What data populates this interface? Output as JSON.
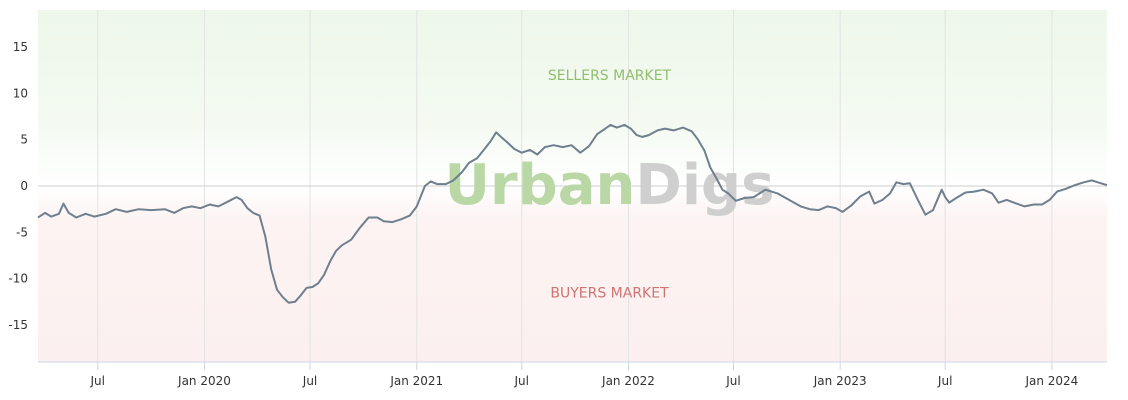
{
  "watermark": {
    "part1": "Urban",
    "part2": "Digs",
    "color1": "#b9d8a6",
    "color2": "#cfcfcf"
  },
  "zones": {
    "sellers": {
      "label": "SELLERS MARKET",
      "color": "#8fbf6e",
      "bg": "#f1f8ee"
    },
    "buyers": {
      "label": "BUYERS MARKET",
      "color": "#d07373",
      "bg": "#fbf0ef"
    }
  },
  "chart_data": {
    "type": "line",
    "ylim": [
      -19,
      19
    ],
    "yticks": [
      15,
      10,
      5,
      0,
      -5,
      -10,
      -15
    ],
    "xlim": [
      "2019-03-20",
      "2024-04-05"
    ],
    "xticks": [
      {
        "date": "2019-07-01",
        "label": "Jul"
      },
      {
        "date": "2020-01-01",
        "label": "Jan 2020"
      },
      {
        "date": "2020-07-01",
        "label": "Jul"
      },
      {
        "date": "2021-01-01",
        "label": "Jan 2021"
      },
      {
        "date": "2021-07-01",
        "label": "Jul"
      },
      {
        "date": "2022-01-01",
        "label": "Jan 2022"
      },
      {
        "date": "2022-07-01",
        "label": "Jul"
      },
      {
        "date": "2023-01-01",
        "label": "Jan 2023"
      },
      {
        "date": "2023-07-01",
        "label": "Jul"
      },
      {
        "date": "2024-01-01",
        "label": "Jan 2024"
      }
    ],
    "line_color": "#6f7f8e",
    "series": [
      {
        "points": [
          [
            "2019-03-20",
            -3.4
          ],
          [
            "2019-04-01",
            -2.9
          ],
          [
            "2019-04-12",
            -3.3
          ],
          [
            "2019-04-25",
            -3.0
          ],
          [
            "2019-05-03",
            -1.9
          ],
          [
            "2019-05-12",
            -2.9
          ],
          [
            "2019-05-25",
            -3.4
          ],
          [
            "2019-06-10",
            -3.0
          ],
          [
            "2019-06-25",
            -3.3
          ],
          [
            "2019-07-15",
            -3.0
          ],
          [
            "2019-08-01",
            -2.5
          ],
          [
            "2019-08-20",
            -2.8
          ],
          [
            "2019-09-10",
            -2.5
          ],
          [
            "2019-10-01",
            -2.6
          ],
          [
            "2019-10-25",
            -2.5
          ],
          [
            "2019-11-10",
            -2.9
          ],
          [
            "2019-11-25",
            -2.4
          ],
          [
            "2019-12-10",
            -2.2
          ],
          [
            "2019-12-25",
            -2.4
          ],
          [
            "2020-01-10",
            -2.0
          ],
          [
            "2020-01-25",
            -2.2
          ],
          [
            "2020-02-10",
            -1.7
          ],
          [
            "2020-02-25",
            -1.2
          ],
          [
            "2020-03-05",
            -1.5
          ],
          [
            "2020-03-15",
            -2.4
          ],
          [
            "2020-03-25",
            -2.9
          ],
          [
            "2020-04-05",
            -3.2
          ],
          [
            "2020-04-15",
            -5.5
          ],
          [
            "2020-04-25",
            -9.0
          ],
          [
            "2020-05-05",
            -11.2
          ],
          [
            "2020-05-15",
            -12.0
          ],
          [
            "2020-05-25",
            -12.6
          ],
          [
            "2020-06-05",
            -12.5
          ],
          [
            "2020-06-15",
            -11.8
          ],
          [
            "2020-06-25",
            -11.0
          ],
          [
            "2020-07-05",
            -10.9
          ],
          [
            "2020-07-15",
            -10.5
          ],
          [
            "2020-07-25",
            -9.6
          ],
          [
            "2020-08-05",
            -8.1
          ],
          [
            "2020-08-15",
            -7.0
          ],
          [
            "2020-08-25",
            -6.4
          ],
          [
            "2020-09-10",
            -5.8
          ],
          [
            "2020-09-25",
            -4.5
          ],
          [
            "2020-10-10",
            -3.4
          ],
          [
            "2020-10-25",
            -3.4
          ],
          [
            "2020-11-05",
            -3.8
          ],
          [
            "2020-11-20",
            -3.9
          ],
          [
            "2020-12-05",
            -3.6
          ],
          [
            "2020-12-20",
            -3.2
          ],
          [
            "2021-01-01",
            -2.2
          ],
          [
            "2021-01-15",
            0.0
          ],
          [
            "2021-01-25",
            0.5
          ],
          [
            "2021-02-05",
            0.2
          ],
          [
            "2021-02-20",
            0.2
          ],
          [
            "2021-03-05",
            0.6
          ],
          [
            "2021-03-20",
            1.5
          ],
          [
            "2021-04-01",
            2.5
          ],
          [
            "2021-04-15",
            3.0
          ],
          [
            "2021-04-28",
            4.0
          ],
          [
            "2021-05-08",
            4.8
          ],
          [
            "2021-05-18",
            5.8
          ],
          [
            "2021-05-28",
            5.2
          ],
          [
            "2021-06-08",
            4.6
          ],
          [
            "2021-06-18",
            4.0
          ],
          [
            "2021-07-01",
            3.6
          ],
          [
            "2021-07-15",
            3.9
          ],
          [
            "2021-07-28",
            3.4
          ],
          [
            "2021-08-10",
            4.2
          ],
          [
            "2021-08-25",
            4.4
          ],
          [
            "2021-09-10",
            4.2
          ],
          [
            "2021-09-25",
            4.4
          ],
          [
            "2021-10-10",
            3.6
          ],
          [
            "2021-10-25",
            4.3
          ],
          [
            "2021-11-08",
            5.6
          ],
          [
            "2021-11-20",
            6.1
          ],
          [
            "2021-12-01",
            6.6
          ],
          [
            "2021-12-12",
            6.3
          ],
          [
            "2021-12-25",
            6.6
          ],
          [
            "2022-01-05",
            6.2
          ],
          [
            "2022-01-15",
            5.5
          ],
          [
            "2022-01-25",
            5.3
          ],
          [
            "2022-02-05",
            5.5
          ],
          [
            "2022-02-20",
            6.0
          ],
          [
            "2022-03-05",
            6.2
          ],
          [
            "2022-03-20",
            6.0
          ],
          [
            "2022-04-05",
            6.3
          ],
          [
            "2022-04-20",
            5.9
          ],
          [
            "2022-05-01",
            5.0
          ],
          [
            "2022-05-12",
            3.8
          ],
          [
            "2022-05-22",
            2.0
          ],
          [
            "2022-06-02",
            0.8
          ],
          [
            "2022-06-12",
            -0.4
          ],
          [
            "2022-06-22",
            -0.8
          ],
          [
            "2022-07-05",
            -1.6
          ],
          [
            "2022-07-20",
            -1.3
          ],
          [
            "2022-08-05",
            -1.2
          ],
          [
            "2022-08-25",
            -0.4
          ],
          [
            "2022-09-15",
            -0.8
          ],
          [
            "2022-10-05",
            -1.5
          ],
          [
            "2022-10-25",
            -2.2
          ],
          [
            "2022-11-10",
            -2.5
          ],
          [
            "2022-11-25",
            -2.6
          ],
          [
            "2022-12-10",
            -2.2
          ],
          [
            "2022-12-25",
            -2.4
          ],
          [
            "2023-01-05",
            -2.8
          ],
          [
            "2023-01-20",
            -2.1
          ],
          [
            "2023-02-05",
            -1.1
          ],
          [
            "2023-02-20",
            -0.6
          ],
          [
            "2023-03-01",
            -1.9
          ],
          [
            "2023-03-15",
            -1.5
          ],
          [
            "2023-03-28",
            -0.8
          ],
          [
            "2023-04-08",
            0.4
          ],
          [
            "2023-04-20",
            0.2
          ],
          [
            "2023-05-01",
            0.3
          ],
          [
            "2023-05-15",
            -1.5
          ],
          [
            "2023-05-28",
            -3.1
          ],
          [
            "2023-06-10",
            -2.6
          ],
          [
            "2023-06-25",
            -0.4
          ],
          [
            "2023-07-01",
            -1.2
          ],
          [
            "2023-07-08",
            -1.8
          ],
          [
            "2023-07-20",
            -1.3
          ],
          [
            "2023-08-05",
            -0.7
          ],
          [
            "2023-08-20",
            -0.6
          ],
          [
            "2023-09-05",
            -0.4
          ],
          [
            "2023-09-20",
            -0.8
          ],
          [
            "2023-10-01",
            -1.8
          ],
          [
            "2023-10-15",
            -1.5
          ],
          [
            "2023-11-01",
            -1.9
          ],
          [
            "2023-11-15",
            -2.2
          ],
          [
            "2023-12-01",
            -2.0
          ],
          [
            "2023-12-15",
            -2.0
          ],
          [
            "2023-12-28",
            -1.5
          ],
          [
            "2024-01-10",
            -0.6
          ],
          [
            "2024-01-25",
            -0.3
          ],
          [
            "2024-02-10",
            0.1
          ],
          [
            "2024-02-25",
            0.4
          ],
          [
            "2024-03-10",
            0.6
          ],
          [
            "2024-03-25",
            0.3
          ],
          [
            "2024-04-05",
            0.1
          ]
        ]
      }
    ]
  }
}
